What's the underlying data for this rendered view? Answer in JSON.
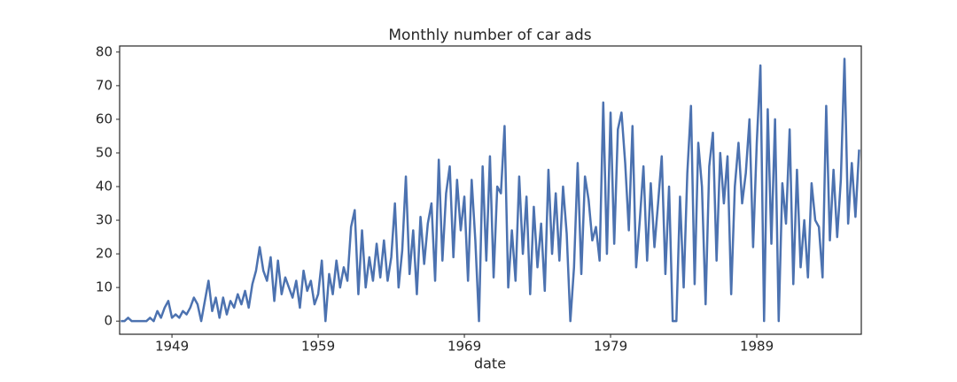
{
  "chart_data": {
    "type": "line",
    "title": "Monthly number of car ads",
    "xlabel": "date",
    "color": "#4c72b0",
    "xlim": [
      1945.42,
      1996.15
    ],
    "ylim": [
      -3.9,
      81.8
    ],
    "xticks": [
      1949,
      1959,
      1969,
      1979,
      1989
    ],
    "yticks": [
      0,
      10,
      20,
      30,
      40,
      50,
      60,
      70,
      80
    ],
    "x": [
      1945.5,
      1945.75,
      1946,
      1946.25,
      1946.5,
      1946.75,
      1947,
      1947.25,
      1947.5,
      1947.75,
      1948,
      1948.25,
      1948.5,
      1948.75,
      1949,
      1949.25,
      1949.5,
      1949.75,
      1950,
      1950.25,
      1950.5,
      1950.75,
      1951,
      1951.25,
      1951.5,
      1951.75,
      1952,
      1952.25,
      1952.5,
      1952.75,
      1953,
      1953.25,
      1953.5,
      1953.75,
      1954,
      1954.25,
      1954.5,
      1954.75,
      1955,
      1955.25,
      1955.5,
      1955.75,
      1956,
      1956.25,
      1956.5,
      1956.75,
      1957,
      1957.25,
      1957.5,
      1957.75,
      1958,
      1958.25,
      1958.5,
      1958.75,
      1959,
      1959.25,
      1959.5,
      1959.75,
      1960,
      1960.25,
      1960.5,
      1960.75,
      1961,
      1961.25,
      1961.5,
      1961.75,
      1962,
      1962.25,
      1962.5,
      1962.75,
      1963,
      1963.25,
      1963.5,
      1963.75,
      1964,
      1964.25,
      1964.5,
      1964.75,
      1965,
      1965.25,
      1965.5,
      1965.75,
      1966,
      1966.25,
      1966.5,
      1966.75,
      1967,
      1967.25,
      1967.5,
      1967.75,
      1968,
      1968.25,
      1968.5,
      1968.75,
      1969,
      1969.25,
      1969.5,
      1969.75,
      1970,
      1970.25,
      1970.5,
      1970.75,
      1971,
      1971.25,
      1971.5,
      1971.75,
      1972,
      1972.25,
      1972.5,
      1972.75,
      1973,
      1973.25,
      1973.5,
      1973.75,
      1974,
      1974.25,
      1974.5,
      1974.75,
      1975,
      1975.25,
      1975.5,
      1975.75,
      1976,
      1976.25,
      1976.5,
      1976.75,
      1977,
      1977.25,
      1977.5,
      1977.75,
      1978,
      1978.25,
      1978.5,
      1978.75,
      1979,
      1979.25,
      1979.5,
      1979.75,
      1980,
      1980.25,
      1980.5,
      1980.75,
      1981,
      1981.25,
      1981.5,
      1981.75,
      1982,
      1982.25,
      1982.5,
      1982.75,
      1983,
      1983.25,
      1983.5,
      1983.75,
      1984,
      1984.25,
      1984.5,
      1984.75,
      1985,
      1985.25,
      1985.5,
      1985.75,
      1986,
      1986.25,
      1986.5,
      1986.75,
      1987,
      1987.25,
      1987.5,
      1987.75,
      1988,
      1988.25,
      1988.5,
      1988.75,
      1989,
      1989.25,
      1989.5,
      1989.75,
      1990,
      1990.25,
      1990.5,
      1990.75,
      1991,
      1991.25,
      1991.5,
      1991.75,
      1992,
      1992.25,
      1992.5,
      1992.75,
      1993,
      1993.25,
      1993.5,
      1993.75,
      1994,
      1994.25,
      1994.5,
      1994.75,
      1995,
      1995.25,
      1995.5,
      1995.75,
      1996
    ],
    "values": [
      0,
      0,
      1,
      0,
      0,
      0,
      0,
      0,
      1,
      0,
      3,
      1,
      4,
      6,
      1,
      2,
      1,
      3,
      2,
      4,
      7,
      5,
      0,
      6,
      12,
      3,
      7,
      1,
      7,
      2,
      6,
      4,
      8,
      5,
      9,
      4,
      11,
      15,
      22,
      15,
      12,
      19,
      6,
      18,
      8,
      13,
      10,
      7,
      12,
      4,
      15,
      9,
      12,
      5,
      8,
      18,
      0,
      14,
      8,
      18,
      10,
      16,
      12,
      28,
      33,
      8,
      27,
      10,
      19,
      12,
      23,
      13,
      24,
      12,
      19,
      35,
      10,
      21,
      43,
      14,
      27,
      8,
      31,
      17,
      29,
      35,
      12,
      48,
      18,
      38,
      46,
      19,
      42,
      27,
      37,
      12,
      42,
      24,
      0,
      46,
      18,
      49,
      13,
      40,
      38,
      58,
      10,
      27,
      12,
      43,
      20,
      37,
      8,
      34,
      16,
      29,
      9,
      45,
      20,
      38,
      18,
      40,
      26,
      0,
      16,
      47,
      14,
      43,
      36,
      24,
      28,
      18,
      65,
      20,
      62,
      23,
      57,
      62,
      47,
      27,
      58,
      16,
      30,
      46,
      18,
      41,
      22,
      35,
      49,
      14,
      40,
      0,
      0,
      37,
      10,
      44,
      64,
      11,
      53,
      40,
      5,
      46,
      56,
      18,
      50,
      35,
      49,
      8,
      40,
      53,
      35,
      44,
      60,
      22,
      53,
      76,
      0,
      63,
      23,
      60,
      0,
      41,
      29,
      57,
      11,
      45,
      16,
      30,
      13,
      41,
      30,
      28,
      13,
      64,
      24,
      45,
      25,
      42,
      78,
      29,
      47,
      31,
      51
    ]
  }
}
